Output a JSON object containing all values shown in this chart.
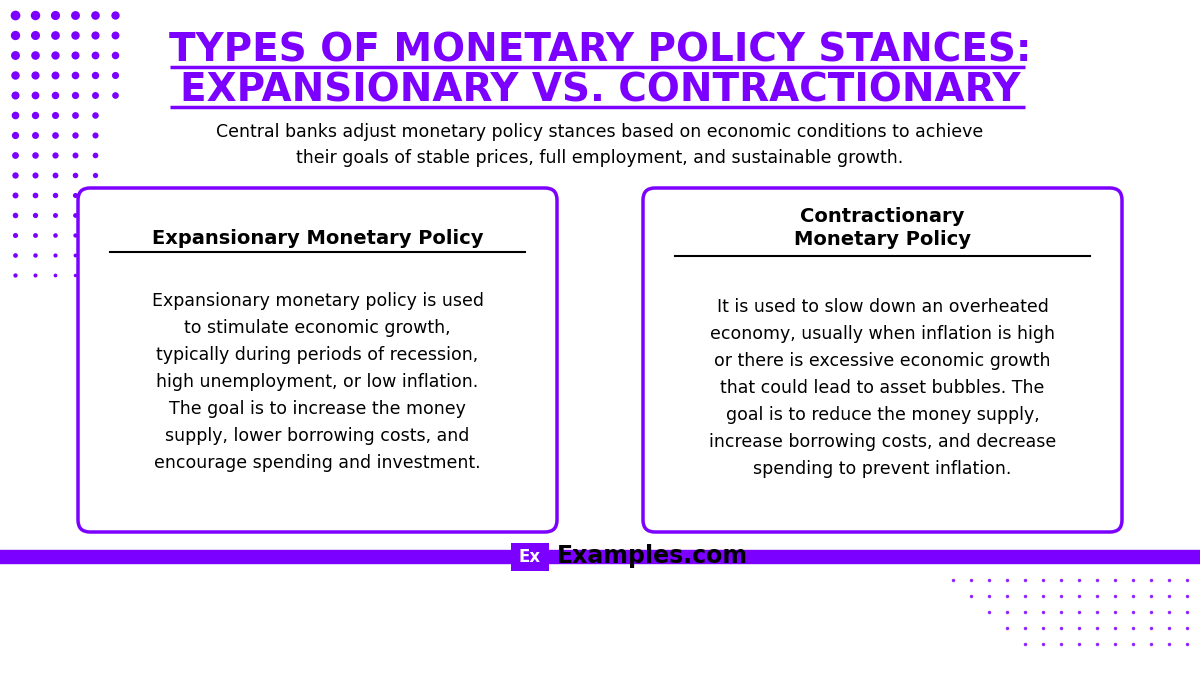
{
  "title_line1": "TYPES OF MONETARY POLICY STANCES:",
  "title_line2": "EXPANSIONARY VS. CONTRACTIONARY",
  "title_color": "#7B00FF",
  "subtitle": "Central banks adjust monetary policy stances based on economic conditions to achieve\ntheir goals of stable prices, full employment, and sustainable growth.",
  "subtitle_color": "#000000",
  "background_color": "#FFFFFF",
  "purple_color": "#7B00FF",
  "box_border_color": "#7B00FF",
  "left_box_title": "Expansionary Monetary Policy",
  "left_box_body": "Expansionary monetary policy is used\nto stimulate economic growth,\ntypically during periods of recession,\nhigh unemployment, or low inflation.\nThe goal is to increase the money\nsupply, lower borrowing costs, and\nencourage spending and investment.",
  "right_box_title": "Contractionary\nMonetary Policy",
  "right_box_body": "It is used to slow down an overheated\neconomy, usually when inflation is high\nor there is excessive economic growth\nthat could lead to asset bubbles. The\ngoal is to reduce the money supply,\nincrease borrowing costs, and decrease\nspending to prevent inflation.",
  "footer_text": "Examples.com",
  "footer_ex": "Ex",
  "dot_color": "#7B00FF"
}
